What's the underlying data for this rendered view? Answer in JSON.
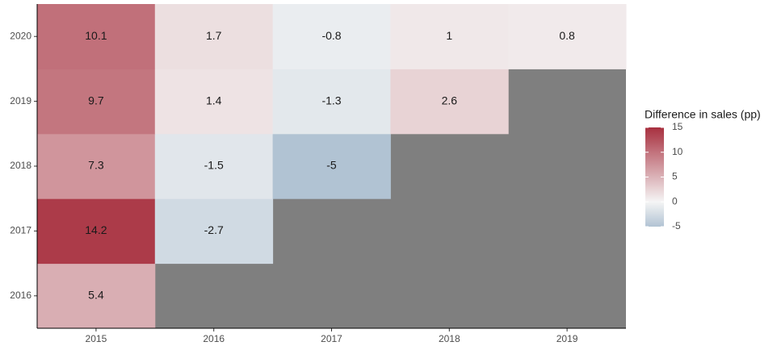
{
  "chart_data": {
    "type": "heatmap",
    "x": [
      "2015",
      "2016",
      "2017",
      "2018",
      "2019"
    ],
    "y": [
      "2016",
      "2017",
      "2018",
      "2019",
      "2020"
    ],
    "values": [
      [
        5.4,
        null,
        null,
        null,
        null
      ],
      [
        14.2,
        -2.7,
        null,
        null,
        null
      ],
      [
        7.3,
        -1.5,
        -5,
        null,
        null
      ],
      [
        9.7,
        1.4,
        -1.3,
        2.6,
        null
      ],
      [
        10.1,
        1.7,
        -0.8,
        1,
        0.8
      ]
    ],
    "legend_title": "Difference in sales (pp)",
    "clim": [
      -5,
      15
    ],
    "cmid": 0,
    "cticks": [
      15,
      10,
      5,
      0,
      -5
    ],
    "colors": {
      "low": "#b1c3d3",
      "mid": "#f5f5f5",
      "high": "#a8303f",
      "missing": "#7f7f7f"
    }
  }
}
